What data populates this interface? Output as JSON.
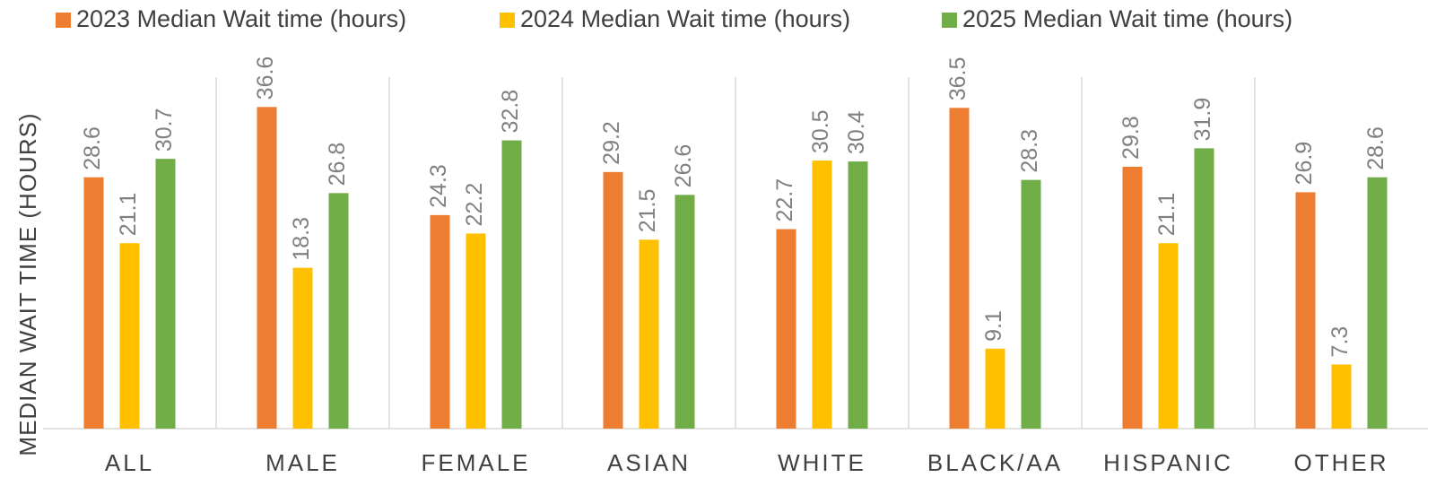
{
  "chart_data": {
    "type": "bar",
    "y_label": "MEDIAN WAIT TIME (HOURS)",
    "categories": [
      "ALL",
      "MALE",
      "FEMALE",
      "ASIAN",
      "WHITE",
      "BLACK/AA",
      "HISPANIC",
      "OTHER"
    ],
    "series": [
      {
        "name": "2023 Median Wait time (hours)",
        "color": "#ED7D31",
        "values": [
          28.6,
          36.6,
          24.3,
          29.2,
          22.7,
          36.5,
          29.8,
          26.9
        ]
      },
      {
        "name": "2024 Median Wait time (hours)",
        "color": "#FFC000",
        "values": [
          21.1,
          18.3,
          22.2,
          21.5,
          30.5,
          9.1,
          21.1,
          7.3
        ]
      },
      {
        "name": "2025 Median Wait time (hours)",
        "color": "#70AD47",
        "values": [
          30.7,
          26.8,
          32.8,
          26.6,
          30.4,
          28.3,
          31.9,
          28.6
        ]
      }
    ],
    "ylim": [
      0,
      40
    ],
    "legend": "top"
  }
}
